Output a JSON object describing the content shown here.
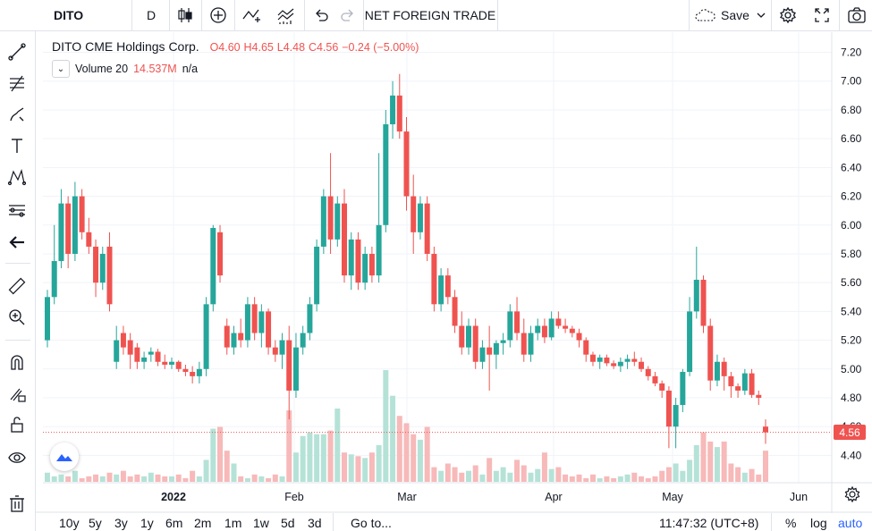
{
  "toolbar": {
    "symbol": "DITO",
    "interval": "D",
    "indicator_name": "NET FOREIGN TRADE",
    "save_label": "Save"
  },
  "legend": {
    "title": "DITO CME Holdings Corp.",
    "open": "O4.60",
    "high": "H4.65",
    "low": "L4.48",
    "close": "C4.56",
    "change": "−0.24 (−5.00%)",
    "volume_label": "Volume 20",
    "volume_value": "14.537M",
    "volume_extra": "n/a"
  },
  "price_badge": "4.56",
  "bottom": {
    "ranges": [
      "10y",
      "5y",
      "3y",
      "1y",
      "6m",
      "2m",
      "1m",
      "1w",
      "5d",
      "3d"
    ],
    "goto": "Go to...",
    "time": "11:47:32 (UTC+8)",
    "percent": "%",
    "log": "log",
    "auto": "auto"
  },
  "colors": {
    "up": "#26a69a",
    "down": "#ef5350",
    "up_vol": "#b5e2d7",
    "down_vol": "#f7b9b9",
    "accent": "#2962ff"
  },
  "chart_data": {
    "type": "candlestick",
    "y_ticks": [
      4.4,
      4.6,
      4.8,
      5.0,
      5.2,
      5.4,
      5.6,
      5.8,
      6.0,
      6.2,
      6.4,
      6.6,
      6.8,
      7.0,
      7.2
    ],
    "x_tick_labels": [
      "2022",
      "Feb",
      "Mar",
      "Apr",
      "May",
      "Jun"
    ],
    "ylim": [
      4.21,
      7.34
    ],
    "candles": [
      [
        5.2,
        5.55,
        5.15,
        5.5
      ],
      [
        5.5,
        6.0,
        5.45,
        5.75
      ],
      [
        5.75,
        6.25,
        5.7,
        6.15
      ],
      [
        6.15,
        6.2,
        5.7,
        5.8
      ],
      [
        5.8,
        6.3,
        5.75,
        6.2
      ],
      [
        6.2,
        6.25,
        5.9,
        5.95
      ],
      [
        5.95,
        6.05,
        5.8,
        5.85
      ],
      [
        5.85,
        5.9,
        5.5,
        5.6
      ],
      [
        5.6,
        5.85,
        5.55,
        5.8
      ],
      [
        5.85,
        5.95,
        5.4,
        5.45
      ],
      [
        5.05,
        5.3,
        5.0,
        5.2
      ],
      [
        5.25,
        5.3,
        5.1,
        5.15
      ],
      [
        5.2,
        5.25,
        5.0,
        5.1
      ],
      [
        5.15,
        5.18,
        5.0,
        5.05
      ],
      [
        5.05,
        5.12,
        5.0,
        5.08
      ],
      [
        5.1,
        5.15,
        5.05,
        5.12
      ],
      [
        5.12,
        5.14,
        5.02,
        5.05
      ],
      [
        5.05,
        5.1,
        5.0,
        5.03
      ],
      [
        5.03,
        5.08,
        5.0,
        5.05
      ],
      [
        5.05,
        5.06,
        4.98,
        5.0
      ],
      [
        5.0,
        5.03,
        4.95,
        4.98
      ],
      [
        4.98,
        5.02,
        4.9,
        4.95
      ],
      [
        4.95,
        5.05,
        4.9,
        5.0
      ],
      [
        5.0,
        5.5,
        4.95,
        5.45
      ],
      [
        5.45,
        6.0,
        5.4,
        5.98
      ],
      [
        5.95,
        6.0,
        5.6,
        5.65
      ],
      [
        5.3,
        5.35,
        5.1,
        5.15
      ],
      [
        5.15,
        5.3,
        5.1,
        5.25
      ],
      [
        5.25,
        5.35,
        5.15,
        5.2
      ],
      [
        5.2,
        5.5,
        5.15,
        5.45
      ],
      [
        5.45,
        5.5,
        5.2,
        5.25
      ],
      [
        5.25,
        5.45,
        5.15,
        5.4
      ],
      [
        5.4,
        5.42,
        5.1,
        5.15
      ],
      [
        5.15,
        5.2,
        5.05,
        5.1
      ],
      [
        5.1,
        5.25,
        5.0,
        5.2
      ],
      [
        5.2,
        5.3,
        4.65,
        4.85
      ],
      [
        4.85,
        5.25,
        4.8,
        5.15
      ],
      [
        5.15,
        5.3,
        5.1,
        5.25
      ],
      [
        5.25,
        5.5,
        5.2,
        5.45
      ],
      [
        5.45,
        5.9,
        5.4,
        5.85
      ],
      [
        5.85,
        6.25,
        5.8,
        6.2
      ],
      [
        6.2,
        6.5,
        5.8,
        5.9
      ],
      [
        5.9,
        6.2,
        5.85,
        6.15
      ],
      [
        6.15,
        6.25,
        5.6,
        5.65
      ],
      [
        5.65,
        5.95,
        5.55,
        5.9
      ],
      [
        5.9,
        5.95,
        5.55,
        5.6
      ],
      [
        5.6,
        5.85,
        5.55,
        5.8
      ],
      [
        5.8,
        5.85,
        5.6,
        5.65
      ],
      [
        5.65,
        6.5,
        5.6,
        6.0
      ],
      [
        6.0,
        6.8,
        5.95,
        6.7
      ],
      [
        6.7,
        7.0,
        6.6,
        6.9
      ],
      [
        6.9,
        7.05,
        6.6,
        6.65
      ],
      [
        6.65,
        6.75,
        6.1,
        6.2
      ],
      [
        6.2,
        6.35,
        5.8,
        5.95
      ],
      [
        5.95,
        6.2,
        5.9,
        6.15
      ],
      [
        6.15,
        6.2,
        5.75,
        5.8
      ],
      [
        5.8,
        5.85,
        5.4,
        5.45
      ],
      [
        5.45,
        5.7,
        5.4,
        5.65
      ],
      [
        5.65,
        5.7,
        5.45,
        5.5
      ],
      [
        5.5,
        5.55,
        5.25,
        5.3
      ],
      [
        5.3,
        5.4,
        5.1,
        5.15
      ],
      [
        5.15,
        5.35,
        5.1,
        5.3
      ],
      [
        5.3,
        5.35,
        5.0,
        5.05
      ],
      [
        5.05,
        5.2,
        5.0,
        5.15
      ],
      [
        5.15,
        5.3,
        4.85,
        5.1
      ],
      [
        5.1,
        5.2,
        5.0,
        5.18
      ],
      [
        5.18,
        5.25,
        5.1,
        5.2
      ],
      [
        5.2,
        5.45,
        5.15,
        5.4
      ],
      [
        5.4,
        5.5,
        5.2,
        5.25
      ],
      [
        5.25,
        5.35,
        5.05,
        5.1
      ],
      [
        5.1,
        5.3,
        5.05,
        5.25
      ],
      [
        5.25,
        5.35,
        5.2,
        5.3
      ],
      [
        5.3,
        5.35,
        5.18,
        5.22
      ],
      [
        5.22,
        5.4,
        5.2,
        5.35
      ],
      [
        5.35,
        5.4,
        5.28,
        5.3
      ],
      [
        5.3,
        5.35,
        5.25,
        5.28
      ],
      [
        5.28,
        5.3,
        5.22,
        5.25
      ],
      [
        5.25,
        5.28,
        5.15,
        5.2
      ],
      [
        5.2,
        5.22,
        5.05,
        5.1
      ],
      [
        5.1,
        5.12,
        5.02,
        5.05
      ],
      [
        5.05,
        5.1,
        5.0,
        5.08
      ],
      [
        5.08,
        5.1,
        5.02,
        5.04
      ],
      [
        5.04,
        5.06,
        5.0,
        5.02
      ],
      [
        5.02,
        5.08,
        4.98,
        5.05
      ],
      [
        5.05,
        5.1,
        5.0,
        5.07
      ],
      [
        5.07,
        5.12,
        5.02,
        5.05
      ],
      [
        5.05,
        5.08,
        4.98,
        5.0
      ],
      [
        5.0,
        5.02,
        4.92,
        4.95
      ],
      [
        4.95,
        4.98,
        4.88,
        4.9
      ],
      [
        4.9,
        4.92,
        4.8,
        4.85
      ],
      [
        4.85,
        4.88,
        4.45,
        4.6
      ],
      [
        4.6,
        4.8,
        4.45,
        4.75
      ],
      [
        4.75,
        5.0,
        4.7,
        4.98
      ],
      [
        4.98,
        5.5,
        4.95,
        5.4
      ],
      [
        5.4,
        5.85,
        5.35,
        5.62
      ],
      [
        5.62,
        5.65,
        5.25,
        5.3
      ],
      [
        5.3,
        5.35,
        4.85,
        4.92
      ],
      [
        4.92,
        5.1,
        4.88,
        5.05
      ],
      [
        5.05,
        5.08,
        4.85,
        4.95
      ],
      [
        4.95,
        4.98,
        4.8,
        4.88
      ],
      [
        4.88,
        4.9,
        4.8,
        4.85
      ],
      [
        4.85,
        5.0,
        4.82,
        4.97
      ],
      [
        4.97,
        5.0,
        4.8,
        4.82
      ],
      [
        4.82,
        4.85,
        4.75,
        4.8
      ],
      [
        4.6,
        4.65,
        4.48,
        4.56
      ]
    ],
    "volumes": [
      0.5,
      0.3,
      0.4,
      0.3,
      0.6,
      0.2,
      0.3,
      0.4,
      0.3,
      0.5,
      0.4,
      0.6,
      0.3,
      0.4,
      0.3,
      0.5,
      0.4,
      0.3,
      0.3,
      0.4,
      0.2,
      0.6,
      0.3,
      1.2,
      2.9,
      3.0,
      1.7,
      1.0,
      0.3,
      0.2,
      0.4,
      0.3,
      0.2,
      0.4,
      0.3,
      3.9,
      1.6,
      2.5,
      2.7,
      2.6,
      2.6,
      2.8,
      4.0,
      1.6,
      1.5,
      1.4,
      1.3,
      1.6,
      2.0,
      6.1,
      4.7,
      3.6,
      3.2,
      2.6,
      2.3,
      3.0,
      0.8,
      0.6,
      1.0,
      0.8,
      0.5,
      0.6,
      0.9,
      0.4,
      1.3,
      0.6,
      0.8,
      0.5,
      1.2,
      0.9,
      0.5,
      0.7,
      1.6,
      0.7,
      0.8,
      0.4,
      0.3,
      0.4,
      0.2,
      0.4,
      0.2,
      0.3,
      0.2,
      0.3,
      0.4,
      0.5,
      0.3,
      0.2,
      0.3,
      0.6,
      0.8,
      1.0,
      0.6,
      1.2,
      2.0,
      2.7,
      2.2,
      1.9,
      2.2,
      1.0,
      0.8,
      0.5,
      0.7,
      0.4,
      1.7
    ]
  }
}
